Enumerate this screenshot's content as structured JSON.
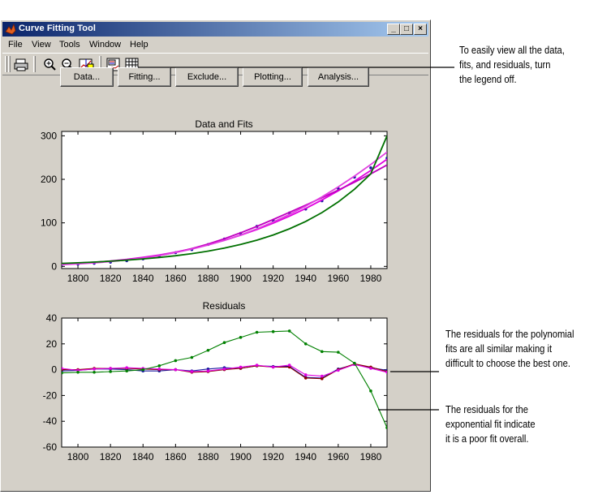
{
  "window": {
    "title": "Curve Fitting Tool",
    "controls": {
      "minimize": "_",
      "maximize": "□",
      "close": "×"
    }
  },
  "menu": [
    "File",
    "View",
    "Tools",
    "Window",
    "Help"
  ],
  "toolbar": {
    "icons": [
      "print-icon",
      "zoom-in-icon",
      "zoom-out-icon",
      "data-cursor-icon",
      "legend-icon",
      "grid-icon"
    ]
  },
  "buttons": {
    "data": "Data...",
    "fitting": "Fitting...",
    "exclude": "Exclude...",
    "plotting": "Plotting...",
    "analysis": "Analysis..."
  },
  "annotations": {
    "legend_line1": "To easily view all the data,",
    "legend_line2": "fits, and residuals, turn",
    "legend_line3": "the legend off.",
    "poly_line1": "The residuals for the polynomial",
    "poly_line2": "fits are all similar making it",
    "poly_line3": "difficult to choose the best one.",
    "exp_line1": "The residuals for the",
    "exp_line2": "exponential fit indicate",
    "exp_line3": "it is a poor fit overall."
  },
  "chart_data": [
    {
      "type": "line",
      "title": "Data and Fits",
      "xlabel": "",
      "ylabel": "",
      "xlim": [
        1790,
        1990
      ],
      "ylim": [
        -5,
        310
      ],
      "xticks": [
        1800,
        1820,
        1840,
        1860,
        1880,
        1900,
        1920,
        1940,
        1960,
        1980
      ],
      "yticks": [
        0,
        100,
        200,
        300
      ],
      "grid": false,
      "legend": "none",
      "series": [
        {
          "kind": "points",
          "color": "#1a1aa0",
          "x": [
            1790,
            1800,
            1810,
            1820,
            1830,
            1840,
            1850,
            1860,
            1870,
            1880,
            1890,
            1900,
            1910,
            1920,
            1930,
            1940,
            1950,
            1960,
            1970,
            1980,
            1990
          ],
          "y": [
            3.9,
            5.3,
            7.2,
            9.6,
            12.9,
            17.1,
            23.1,
            31.4,
            38.6,
            50.2,
            62.9,
            76.0,
            92.0,
            105.7,
            122.8,
            131.7,
            150.7,
            179.0,
            205.0,
            226.5,
            248.7
          ]
        },
        {
          "kind": "line",
          "color": "#e000e0",
          "x": [
            1790,
            1800,
            1810,
            1820,
            1830,
            1840,
            1850,
            1860,
            1870,
            1880,
            1890,
            1900,
            1910,
            1920,
            1930,
            1940,
            1950,
            1960,
            1970,
            1980,
            1990
          ],
          "y": [
            5.1,
            6.9,
            9.2,
            12.3,
            16.1,
            20.7,
            26.2,
            32.8,
            40.6,
            49.6,
            59.9,
            71.6,
            84.7,
            99.3,
            115.4,
            133.2,
            152.6,
            173.6,
            196.2,
            220.4,
            246.1
          ]
        },
        {
          "kind": "line",
          "color": "#c000c0",
          "x": [
            1790,
            1800,
            1810,
            1820,
            1830,
            1840,
            1850,
            1860,
            1870,
            1880,
            1890,
            1900,
            1910,
            1920,
            1930,
            1940,
            1950,
            1960,
            1970,
            1980,
            1990
          ],
          "y": [
            6.0,
            7.6,
            9.5,
            12.0,
            15.2,
            19.4,
            24.9,
            32.0,
            40.8,
            51.4,
            63.6,
            77.2,
            92.0,
            107.7,
            124.1,
            140.8,
            157.8,
            175.3,
            193.4,
            212.5,
            233.0
          ]
        },
        {
          "kind": "line",
          "color": "#e040e0",
          "x": [
            1790,
            1800,
            1810,
            1820,
            1830,
            1840,
            1850,
            1860,
            1870,
            1880,
            1890,
            1900,
            1910,
            1920,
            1930,
            1940,
            1950,
            1960,
            1970,
            1980,
            1990
          ],
          "y": [
            4.0,
            5.8,
            8.1,
            11.1,
            14.8,
            19.3,
            24.9,
            31.7,
            39.7,
            49.0,
            59.8,
            72.2,
            86.2,
            101.9,
            119.3,
            138.5,
            159.6,
            182.5,
            207.4,
            234.0,
            262.5
          ]
        },
        {
          "kind": "line",
          "color": "#007000",
          "x": [
            1790,
            1800,
            1810,
            1820,
            1830,
            1840,
            1850,
            1860,
            1870,
            1880,
            1890,
            1900,
            1910,
            1920,
            1930,
            1940,
            1950,
            1960,
            1970,
            1980,
            1990
          ],
          "y": [
            7.0,
            8.3,
            10.0,
            11.9,
            14.3,
            17.1,
            20.5,
            24.5,
            29.3,
            35.1,
            42.0,
            50.3,
            60.2,
            72.1,
            86.3,
            103.3,
            123.7,
            148.1,
            177.3,
            212.3,
            300.0
          ]
        }
      ]
    },
    {
      "type": "line",
      "title": "Residuals",
      "xlabel": "",
      "ylabel": "",
      "xlim": [
        1790,
        1990
      ],
      "ylim": [
        -60,
        40
      ],
      "xticks": [
        1800,
        1820,
        1840,
        1860,
        1880,
        1900,
        1920,
        1940,
        1960,
        1980
      ],
      "yticks": [
        -60,
        -40,
        -20,
        0,
        20,
        40
      ],
      "grid": false,
      "legend": "none",
      "series": [
        {
          "kind": "line+points",
          "color": "#1a1aa0",
          "x": [
            1790,
            1800,
            1810,
            1820,
            1830,
            1840,
            1850,
            1860,
            1870,
            1880,
            1890,
            1900,
            1910,
            1920,
            1930,
            1940,
            1950,
            1960,
            1970,
            1980,
            1990
          ],
          "y": [
            -1.0,
            -0.5,
            0.5,
            0.5,
            0.0,
            -1.0,
            -1.0,
            0.0,
            -1.0,
            0.5,
            1.5,
            1.0,
            3.0,
            2.5,
            2.5,
            -6.0,
            -6.5,
            0.5,
            4.0,
            1.5,
            -0.5
          ]
        },
        {
          "kind": "line+points",
          "color": "#8b0000",
          "x": [
            1790,
            1800,
            1810,
            1820,
            1830,
            1840,
            1850,
            1860,
            1870,
            1880,
            1890,
            1900,
            1910,
            1920,
            1930,
            1940,
            1950,
            1960,
            1970,
            1980,
            1990
          ],
          "y": [
            0.0,
            0.0,
            1.0,
            1.0,
            1.0,
            0.5,
            0.0,
            0.0,
            -2.0,
            -1.5,
            0.0,
            1.0,
            3.0,
            2.0,
            2.0,
            -6.5,
            -7.0,
            0.0,
            4.5,
            2.0,
            -1.5
          ]
        },
        {
          "kind": "line+points",
          "color": "#e000e0",
          "x": [
            1790,
            1800,
            1810,
            1820,
            1830,
            1840,
            1850,
            1860,
            1870,
            1880,
            1890,
            1900,
            1910,
            1920,
            1930,
            1940,
            1950,
            1960,
            1970,
            1980,
            1990
          ],
          "y": [
            1.0,
            -0.5,
            0.5,
            1.0,
            1.5,
            1.0,
            0.5,
            0.0,
            -1.5,
            -1.0,
            0.5,
            2.0,
            3.5,
            2.0,
            3.5,
            -4.0,
            -5.0,
            -0.5,
            4.0,
            1.0,
            -2.0
          ]
        },
        {
          "kind": "line+points",
          "color": "#008000",
          "x": [
            1790,
            1800,
            1810,
            1820,
            1830,
            1840,
            1850,
            1860,
            1870,
            1880,
            1890,
            1900,
            1910,
            1920,
            1930,
            1940,
            1950,
            1960,
            1970,
            1980,
            1990
          ],
          "y": [
            -2.5,
            -2.0,
            -2.0,
            -1.5,
            -1.0,
            0.0,
            3.0,
            7.0,
            9.5,
            15.0,
            21.0,
            25.0,
            29.0,
            29.5,
            30.0,
            20.0,
            14.0,
            13.5,
            5.0,
            -16.5,
            -45.0
          ]
        }
      ]
    }
  ]
}
